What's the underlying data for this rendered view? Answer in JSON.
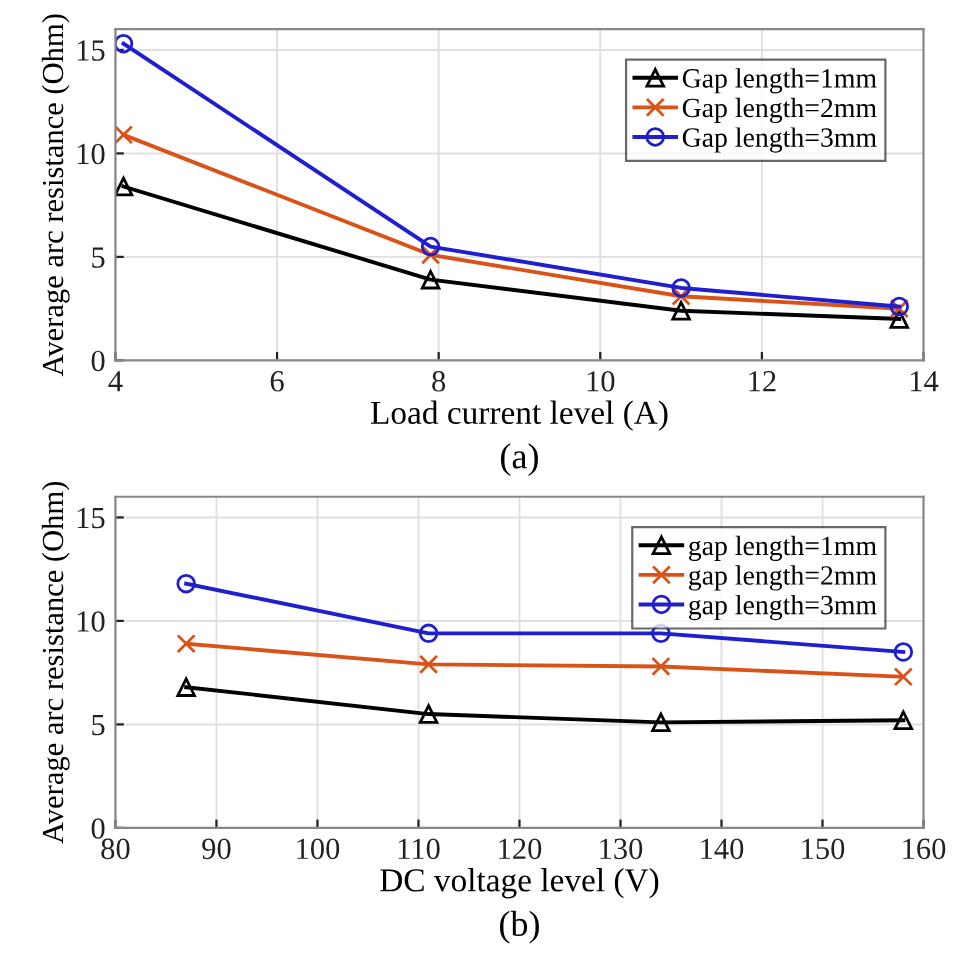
{
  "chart_data": [
    {
      "type": "line",
      "xlabel": "Load current level (A)",
      "ylabel": "Average arc resistance (Ohm)",
      "annotations": [
        "(a)"
      ],
      "x": [
        4.1,
        7.9,
        11,
        13.7
      ],
      "xlim": [
        4,
        14
      ],
      "xticks": [
        4,
        6,
        8,
        10,
        12,
        14
      ],
      "ylim": [
        0,
        16
      ],
      "yticks": [
        0,
        5,
        10,
        15
      ],
      "grid": true,
      "legend": "top right",
      "series": [
        {
          "name": "Gap length=1mm",
          "color": "#000000",
          "marker": "triangle",
          "values": [
            8.4,
            3.9,
            2.4,
            2.0
          ]
        },
        {
          "name": "Gap length=2mm",
          "color": "#d95319",
          "marker": "cross",
          "values": [
            10.9,
            5.1,
            3.1,
            2.5
          ]
        },
        {
          "name": "Gap length=3mm",
          "color": "#1f1fd0",
          "marker": "circle",
          "values": [
            15.3,
            5.5,
            3.5,
            2.6
          ]
        }
      ]
    },
    {
      "type": "line",
      "xlabel": "DC voltage level (V)",
      "ylabel": "Average arc resistance (Ohm)",
      "annotations": [
        "(b)"
      ],
      "x": [
        87,
        111,
        134,
        158
      ],
      "xlim": [
        80,
        160
      ],
      "xticks": [
        80,
        90,
        100,
        110,
        120,
        130,
        140,
        150,
        160
      ],
      "ylim": [
        0,
        16
      ],
      "yticks": [
        0,
        5,
        10,
        15
      ],
      "grid": true,
      "legend": "top right",
      "series": [
        {
          "name": "gap length=1mm",
          "color": "#000000",
          "marker": "triangle",
          "values": [
            6.8,
            5.5,
            5.1,
            5.2
          ]
        },
        {
          "name": "gap length=2mm",
          "color": "#d95319",
          "marker": "cross",
          "values": [
            8.9,
            7.9,
            7.8,
            7.3
          ]
        },
        {
          "name": "gap length=3mm",
          "color": "#1f1fd0",
          "marker": "circle",
          "values": [
            11.8,
            9.4,
            9.4,
            8.5
          ]
        }
      ]
    }
  ]
}
